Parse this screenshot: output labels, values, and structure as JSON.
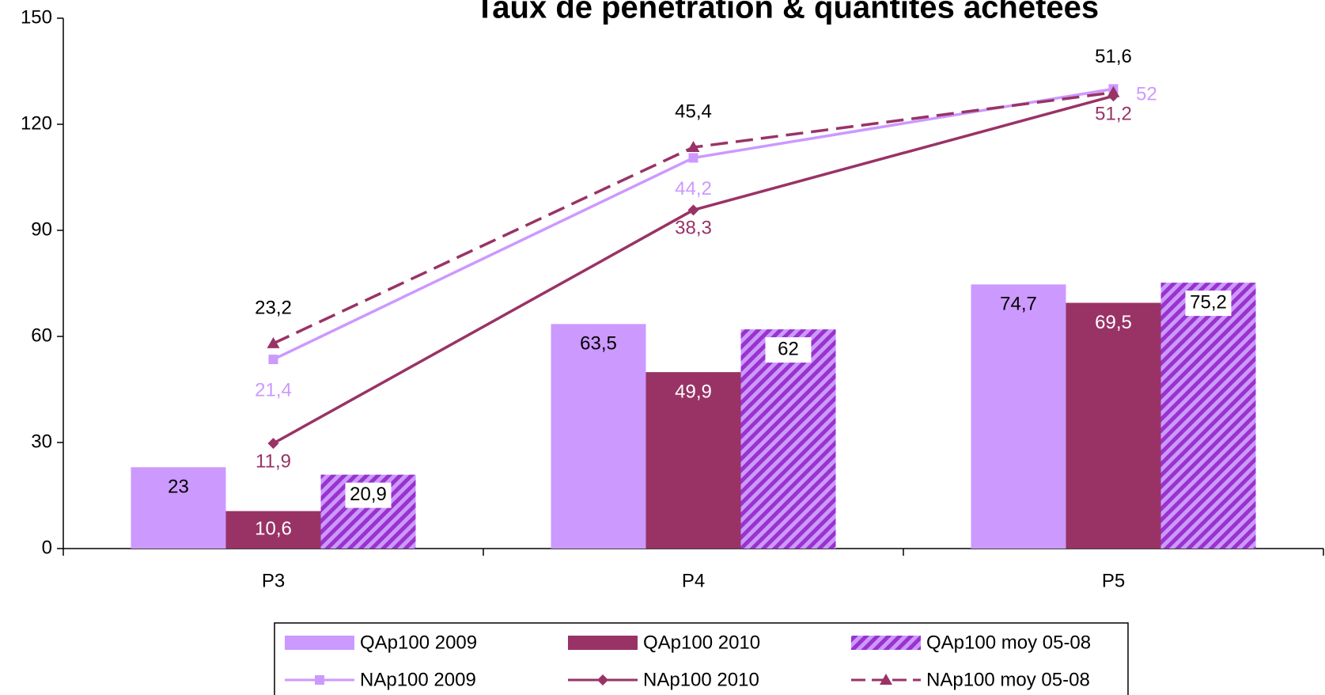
{
  "chart_data": {
    "type": "bar",
    "title": "Taux de pénétration & quantités achetées",
    "categories": [
      "P3",
      "P4",
      "P5"
    ],
    "ylim": [
      0,
      150
    ],
    "yticks": [
      0,
      30,
      60,
      90,
      120,
      150
    ],
    "y2lim": [
      0,
      60
    ],
    "series": [
      {
        "name": "QAp100 2009",
        "type": "bar",
        "color": "#cc99ff",
        "values": [
          23,
          63.5,
          74.7
        ],
        "value_labels": [
          "23",
          "63,5",
          "74,7"
        ]
      },
      {
        "name": "QAp100 2010",
        "type": "bar",
        "color": "#993366",
        "values": [
          10.6,
          49.9,
          69.5
        ],
        "value_labels": [
          "10,6",
          "49,9",
          "69,5"
        ]
      },
      {
        "name": "QAp100 moy 05-08",
        "type": "bar",
        "color": "#9933cc",
        "pattern": "hatch",
        "values": [
          20.9,
          62,
          75.2
        ],
        "value_labels": [
          "20,9",
          "62",
          "75,2"
        ]
      },
      {
        "name": "NAp100 2009",
        "type": "line",
        "axis": "y2",
        "color": "#cc99ff",
        "marker": "square",
        "values": [
          21.4,
          44.2,
          52
        ],
        "value_labels": [
          "21,4",
          "44,2",
          "52"
        ]
      },
      {
        "name": "NAp100 2010",
        "type": "line",
        "axis": "y2",
        "color": "#993366",
        "marker": "diamond",
        "values": [
          11.9,
          38.3,
          51.2
        ],
        "value_labels": [
          "11,9",
          "38,3",
          "51,2"
        ]
      },
      {
        "name": "NAp100 moy 05-08",
        "type": "line",
        "axis": "y2",
        "color": "#993366",
        "marker": "triangle",
        "dash": true,
        "values": [
          23.2,
          45.4,
          51.6
        ],
        "value_labels": [
          "23,2",
          "45,4",
          "51,6"
        ]
      }
    ]
  }
}
